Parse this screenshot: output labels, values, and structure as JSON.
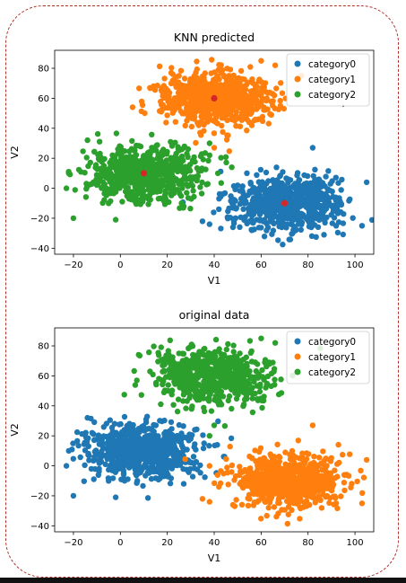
{
  "colors": {
    "category0": "#1f77b4",
    "category1": "#ff7f0e",
    "category2": "#2ca02c",
    "centroid": "#d62728",
    "frame": "#b0302a"
  },
  "chart_data": [
    {
      "type": "scatter",
      "title": "KNN predicted",
      "xlabel": "V1",
      "ylabel": "V2",
      "xlim": [
        -28,
        108
      ],
      "ylim": [
        -44,
        92
      ],
      "xticks": [
        -20,
        0,
        20,
        40,
        60,
        80,
        100
      ],
      "yticks": [
        -40,
        -20,
        0,
        20,
        40,
        60,
        80
      ],
      "legend_position": "top-right",
      "series": [
        {
          "name": "category0",
          "color": "#1f77b4",
          "center": [
            70,
            -10
          ],
          "spread": [
            12,
            9
          ],
          "count": 700,
          "outliers": [
            [
              35,
              -22
            ],
            [
              38,
              -24
            ],
            [
              42,
              -14
            ],
            [
              55,
              -22
            ],
            [
              48,
              -26
            ],
            [
              92,
              -25
            ],
            [
              103,
              -25
            ],
            [
              105,
              4
            ],
            [
              82,
              27
            ]
          ]
        },
        {
          "name": "category1",
          "color": "#ff7f0e",
          "center": [
            40,
            60
          ],
          "spread": [
            12,
            9
          ],
          "count": 700,
          "outliers": [
            [
              40,
              27
            ],
            [
              25,
              75
            ],
            [
              60,
              85
            ],
            [
              66,
              82
            ],
            [
              18,
              67
            ]
          ]
        },
        {
          "name": "category2",
          "color": "#2ca02c",
          "center": [
            10,
            10
          ],
          "spread": [
            12,
            9
          ],
          "count": 700,
          "outliers": [
            [
              -20,
              -20
            ],
            [
              -22,
              10
            ],
            [
              -14,
              32
            ],
            [
              -23,
              0
            ],
            [
              -2,
              -21
            ],
            [
              -5,
              -10
            ],
            [
              38,
              30
            ],
            [
              27,
              -12
            ],
            [
              38,
              22
            ]
          ]
        }
      ],
      "centroids": [
        [
          70,
          -10
        ],
        [
          40,
          60
        ],
        [
          10,
          10
        ]
      ],
      "stray_points": [
        [
          95,
          55
        ]
      ]
    },
    {
      "type": "scatter",
      "title": "original data",
      "xlabel": "V1",
      "ylabel": "V2",
      "xlim": [
        -28,
        108
      ],
      "ylim": [
        -44,
        92
      ],
      "xticks": [
        -20,
        0,
        20,
        40,
        60,
        80,
        100
      ],
      "yticks": [
        -40,
        -20,
        0,
        20,
        40,
        60,
        80
      ],
      "legend_position": "top-right",
      "series": [
        {
          "name": "category0",
          "color": "#1f77b4",
          "center": [
            10,
            10
          ],
          "spread": [
            12,
            9
          ],
          "count": 700,
          "outliers": [
            [
              -20,
              -20
            ],
            [
              -22,
              10
            ],
            [
              -14,
              32
            ],
            [
              -23,
              0
            ],
            [
              -2,
              -21
            ],
            [
              -5,
              -10
            ],
            [
              27,
              -12
            ],
            [
              30,
              18
            ]
          ]
        },
        {
          "name": "category1",
          "color": "#ff7f0e",
          "center": [
            70,
            -10
          ],
          "spread": [
            12,
            9
          ],
          "count": 700,
          "outliers": [
            [
              35,
              -22
            ],
            [
              38,
              -24
            ],
            [
              42,
              -14
            ],
            [
              55,
              -22
            ],
            [
              48,
              -26
            ],
            [
              92,
              -25
            ],
            [
              103,
              -25
            ],
            [
              105,
              4
            ],
            [
              82,
              27
            ],
            [
              38,
              0
            ]
          ]
        },
        {
          "name": "category2",
          "color": "#2ca02c",
          "center": [
            40,
            60
          ],
          "spread": [
            12,
            9
          ],
          "count": 700,
          "outliers": [
            [
              40,
              27
            ],
            [
              25,
              75
            ],
            [
              60,
              85
            ],
            [
              66,
              82
            ],
            [
              18,
              67
            ],
            [
              38,
              20
            ]
          ]
        }
      ],
      "centroids": [],
      "stray_points": []
    }
  ]
}
